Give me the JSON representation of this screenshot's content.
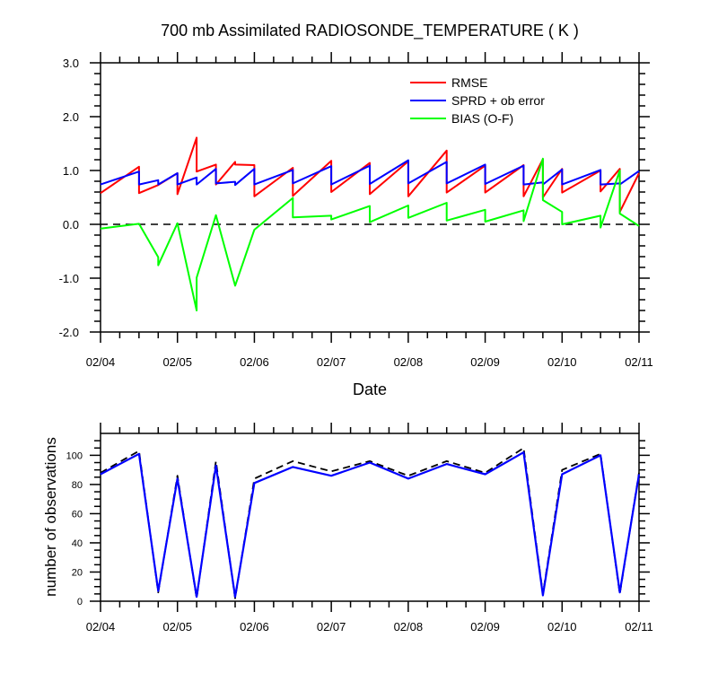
{
  "colors": {
    "rmse": "#ff0000",
    "sprd": "#0000ff",
    "bias": "#00ff00",
    "axis": "#000000",
    "dashed": "#000000"
  },
  "chart_data": [
    {
      "type": "line",
      "title": "700 mb Assimilated RADIOSONDE_TEMPERATURE ( K )",
      "xlabel": "Date",
      "ylabel": "",
      "x_tick_labels": [
        "02/04",
        "02/05",
        "02/06",
        "02/07",
        "02/08",
        "02/09",
        "02/10",
        "02/11"
      ],
      "y_tick_labels": [
        "3.0",
        "2.0",
        "1.0",
        "0.0",
        "-1.0",
        "-2.0"
      ],
      "ylim": [
        -2,
        3
      ],
      "xlim": [
        "02/04 00Z",
        "02/11 00Z"
      ],
      "legend_position": "top-right",
      "zero_line": "dashed",
      "series": [
        {
          "name": "RMSE",
          "points": [
            [
              "02/04 00Z",
              0.58
            ],
            [
              "02/04 12Z",
              1.07
            ],
            [
              "02/04 12Z",
              0.58
            ],
            [
              "02/04 18Z",
              0.73
            ],
            [
              "02/05 00Z",
              0.95
            ],
            [
              "02/05 00Z",
              0.56
            ],
            [
              "02/05 06Z",
              1.61
            ],
            [
              "02/05 06Z",
              0.98
            ],
            [
              "02/05 12Z",
              1.11
            ],
            [
              "02/05 12Z",
              0.74
            ],
            [
              "02/05 18Z",
              1.16
            ],
            [
              "02/05 18Z",
              1.11
            ],
            [
              "02/06 00Z",
              1.1
            ],
            [
              "02/06 00Z",
              0.52
            ],
            [
              "02/06 12Z",
              1.05
            ],
            [
              "02/06 12Z",
              0.53
            ],
            [
              "02/07 00Z",
              1.18
            ],
            [
              "02/07 00Z",
              0.6
            ],
            [
              "02/07 12Z",
              1.14
            ],
            [
              "02/07 12Z",
              0.56
            ],
            [
              "02/08 00Z",
              1.17
            ],
            [
              "02/08 00Z",
              0.52
            ],
            [
              "02/08 12Z",
              1.37
            ],
            [
              "02/08 12Z",
              0.59
            ],
            [
              "02/09 00Z",
              1.09
            ],
            [
              "02/09 00Z",
              0.59
            ],
            [
              "02/09 12Z",
              1.1
            ],
            [
              "02/09 12Z",
              0.52
            ],
            [
              "02/09 18Z",
              1.21
            ],
            [
              "02/09 18Z",
              0.5
            ],
            [
              "02/10 00Z",
              1.03
            ],
            [
              "02/10 00Z",
              0.59
            ],
            [
              "02/10 12Z",
              1.0
            ],
            [
              "02/10 12Z",
              0.61
            ],
            [
              "02/10 18Z",
              1.03
            ],
            [
              "02/10 18Z",
              0.23
            ],
            [
              "02/11 00Z",
              0.95
            ]
          ]
        },
        {
          "name": "SPRD + ob error",
          "points": [
            [
              "02/04 00Z",
              0.74
            ],
            [
              "02/04 12Z",
              0.98
            ],
            [
              "02/04 12Z",
              0.74
            ],
            [
              "02/04 18Z",
              0.82
            ],
            [
              "02/04 18Z",
              0.74
            ],
            [
              "02/05 00Z",
              0.95
            ],
            [
              "02/05 00Z",
              0.74
            ],
            [
              "02/05 06Z",
              0.87
            ],
            [
              "02/05 06Z",
              0.74
            ],
            [
              "02/05 12Z",
              1.03
            ],
            [
              "02/05 12Z",
              0.76
            ],
            [
              "02/05 18Z",
              0.79
            ],
            [
              "02/05 18Z",
              0.73
            ],
            [
              "02/06 00Z",
              1.03
            ],
            [
              "02/06 00Z",
              0.74
            ],
            [
              "02/06 12Z",
              1.01
            ],
            [
              "02/06 12Z",
              0.76
            ],
            [
              "02/07 00Z",
              1.08
            ],
            [
              "02/07 00Z",
              0.74
            ],
            [
              "02/07 12Z",
              1.09
            ],
            [
              "02/07 12Z",
              0.75
            ],
            [
              "02/08 00Z",
              1.19
            ],
            [
              "02/08 00Z",
              0.76
            ],
            [
              "02/08 12Z",
              1.16
            ],
            [
              "02/08 12Z",
              0.76
            ],
            [
              "02/09 00Z",
              1.11
            ],
            [
              "02/09 00Z",
              0.75
            ],
            [
              "02/09 12Z",
              1.09
            ],
            [
              "02/09 12Z",
              0.74
            ],
            [
              "02/09 18Z",
              0.78
            ],
            [
              "02/09 18Z",
              0.74
            ],
            [
              "02/10 00Z",
              1.02
            ],
            [
              "02/10 00Z",
              0.74
            ],
            [
              "02/10 12Z",
              1.01
            ],
            [
              "02/10 12Z",
              0.74
            ],
            [
              "02/10 18Z",
              0.76
            ],
            [
              "02/10 18Z",
              0.74
            ],
            [
              "02/11 00Z",
              0.99
            ]
          ]
        },
        {
          "name": "BIAS (O-F)",
          "points": [
            [
              "02/04 00Z",
              -0.08
            ],
            [
              "02/04 12Z",
              0.01
            ],
            [
              "02/04 18Z",
              -0.61
            ],
            [
              "02/04 18Z",
              -0.76
            ],
            [
              "02/05 00Z",
              0.02
            ],
            [
              "02/05 06Z",
              -1.6
            ],
            [
              "02/05 06Z",
              -0.99
            ],
            [
              "02/05 12Z",
              0.17
            ],
            [
              "02/05 18Z",
              -1.14
            ],
            [
              "02/06 00Z",
              -0.1
            ],
            [
              "02/06 12Z",
              0.49
            ],
            [
              "02/06 12Z",
              0.13
            ],
            [
              "02/07 00Z",
              0.16
            ],
            [
              "02/07 00Z",
              0.09
            ],
            [
              "02/07 12Z",
              0.34
            ],
            [
              "02/07 12Z",
              0.04
            ],
            [
              "02/08 00Z",
              0.35
            ],
            [
              "02/08 00Z",
              0.12
            ],
            [
              "02/08 12Z",
              0.4
            ],
            [
              "02/08 12Z",
              0.07
            ],
            [
              "02/09 00Z",
              0.27
            ],
            [
              "02/09 00Z",
              0.05
            ],
            [
              "02/09 12Z",
              0.26
            ],
            [
              "02/09 12Z",
              0.06
            ],
            [
              "02/09 18Z",
              1.22
            ],
            [
              "02/09 18Z",
              0.45
            ],
            [
              "02/10 00Z",
              0.23
            ],
            [
              "02/10 00Z",
              0.0
            ],
            [
              "02/10 12Z",
              0.16
            ],
            [
              "02/10 12Z",
              -0.06
            ],
            [
              "02/10 18Z",
              1.0
            ],
            [
              "02/10 18Z",
              0.2
            ],
            [
              "02/11 00Z",
              -0.03
            ]
          ]
        }
      ]
    },
    {
      "type": "line",
      "title": "",
      "xlabel": "",
      "ylabel": "number of observations",
      "x_tick_labels": [
        "02/04",
        "02/05",
        "02/06",
        "02/07",
        "02/08",
        "02/09",
        "02/10",
        "02/11"
      ],
      "y_tick_labels": [
        "0",
        "20",
        "40",
        "60",
        "80",
        "100"
      ],
      "ylim": [
        0,
        115
      ],
      "xlim": [
        "02/04 00Z",
        "02/11 00Z"
      ],
      "categories": [
        "02/04 00Z",
        "02/04 12Z",
        "02/04 18Z",
        "02/05 00Z",
        "02/05 06Z",
        "02/05 12Z",
        "02/05 18Z",
        "02/06 00Z",
        "02/06 12Z",
        "02/07 00Z",
        "02/07 12Z",
        "02/08 00Z",
        "02/08 12Z",
        "02/09 00Z",
        "02/09 12Z",
        "02/09 18Z",
        "02/10 00Z",
        "02/10 12Z",
        "02/10 18Z",
        "02/11 00Z"
      ],
      "series": [
        {
          "style": "dashed-black",
          "values": [
            88,
            103,
            6,
            86,
            2,
            96,
            2,
            84,
            96,
            89,
            96,
            86,
            96,
            88,
            105,
            5,
            90,
            101,
            5,
            88
          ]
        },
        {
          "style": "solid-blue",
          "values": [
            87,
            101,
            7,
            84,
            3,
            93,
            3,
            81,
            92,
            86,
            95,
            84,
            94,
            87,
            102,
            4,
            87,
            100,
            6,
            87
          ]
        }
      ]
    }
  ]
}
